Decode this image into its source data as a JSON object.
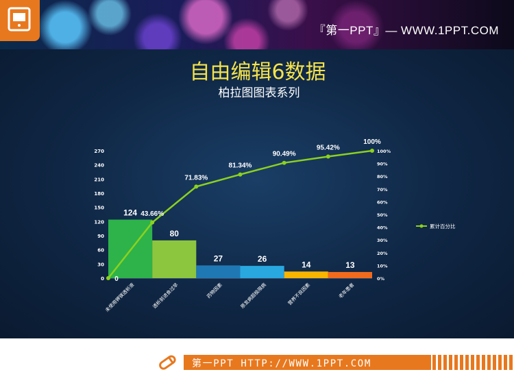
{
  "header": {
    "site_text": "『第一PPT』— WWW.1PPT.COM"
  },
  "footer": {
    "text": "第一PPT HTTP://WWW.1PPT.COM"
  },
  "chart_data": {
    "type": "bar",
    "title": "自由编辑6数据",
    "subtitle": "柏拉图图表系列",
    "categories": [
      "未使用钾镁透析液",
      "透析前进食过早",
      "药物因素",
      "原发病超极限病",
      "营养不良因素",
      "老年患者"
    ],
    "values": [
      124,
      80,
      27,
      26,
      14,
      13
    ],
    "bar_colors": [
      "#2db34a",
      "#8cc63f",
      "#1f78b4",
      "#29a8e0",
      "#f7b500",
      "#f26b1d"
    ],
    "ylim": [
      0,
      270
    ],
    "yticks": [
      0,
      30,
      60,
      90,
      120,
      150,
      180,
      210,
      240,
      270
    ],
    "line": {
      "name": "累计百分比",
      "x": [
        "",
        "未使用钾镁透析液",
        "透析前进食过早",
        "药物因素",
        "原发病超极限病",
        "营养不良因素",
        "老年患者"
      ],
      "values": [
        0,
        43.66,
        71.83,
        81.34,
        90.49,
        95.42,
        100
      ],
      "labels": [
        "0",
        "43.66%",
        "71.83%",
        "81.34%",
        "90.49%",
        "95.42%",
        "100%"
      ],
      "color": "#8cd11e"
    },
    "y2lim": [
      0,
      100
    ],
    "y2ticks": [
      "0%",
      "10%",
      "20%",
      "30%",
      "40%",
      "50%",
      "60%",
      "70%",
      "80%",
      "90%",
      "100%"
    ],
    "legend_position": "right"
  }
}
